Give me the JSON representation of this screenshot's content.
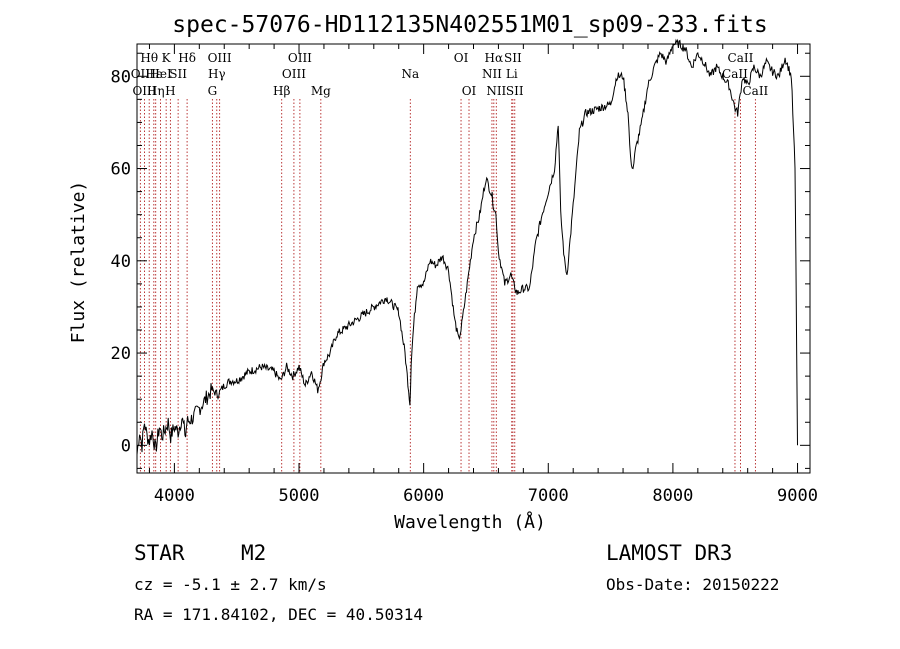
{
  "chart_data": {
    "type": "line",
    "title": "spec-57076-HD112135N402551M01_sp09-233.fits",
    "xlabel": "Wavelength (Å)",
    "ylabel": "Flux (relative)",
    "xlim": [
      3700,
      9100
    ],
    "ylim": [
      -6,
      87
    ],
    "xticks": [
      4000,
      5000,
      6000,
      7000,
      8000,
      9000
    ],
    "yticks": [
      0,
      20,
      40,
      60,
      80
    ],
    "grid": false,
    "series": [
      {
        "name": "spectrum",
        "color": "#000000",
        "x": [
          3700,
          3720,
          3740,
          3760,
          3780,
          3800,
          3820,
          3850,
          3880,
          3900,
          3920,
          3950,
          3970,
          4000,
          4030,
          4060,
          4090,
          4100,
          4150,
          4200,
          4250,
          4300,
          4350,
          4400,
          4450,
          4500,
          4600,
          4700,
          4800,
          4850,
          4870,
          4900,
          4950,
          5000,
          5050,
          5100,
          5150,
          5170,
          5200,
          5250,
          5300,
          5400,
          5500,
          5600,
          5700,
          5800,
          5850,
          5880,
          5890,
          5900,
          5920,
          5950,
          6000,
          6050,
          6100,
          6150,
          6200,
          6250,
          6280,
          6300,
          6350,
          6400,
          6450,
          6500,
          6550,
          6560,
          6580,
          6600,
          6650,
          6700,
          6720,
          6750,
          6800,
          6850,
          6900,
          6950,
          7000,
          7050,
          7080,
          7100,
          7130,
          7150,
          7200,
          7250,
          7300,
          7400,
          7500,
          7550,
          7600,
          7640,
          7660,
          7680,
          7700,
          7750,
          7800,
          7850,
          7900,
          7950,
          8000,
          8050,
          8100,
          8150,
          8200,
          8250,
          8300,
          8350,
          8400,
          8450,
          8500,
          8520,
          8540,
          8560,
          8600,
          8650,
          8700,
          8750,
          8800,
          8850,
          8900,
          8950,
          8980,
          9000
        ],
        "y": [
          -2,
          3,
          0,
          5,
          2,
          1,
          3,
          -1,
          4,
          2,
          3,
          5,
          2,
          4,
          3,
          6,
          2,
          5,
          6,
          8,
          10,
          12,
          11,
          13,
          14,
          14,
          16,
          17,
          16,
          14,
          15,
          17,
          15,
          17,
          13,
          16,
          12,
          14,
          18,
          20,
          24,
          26,
          28,
          30,
          32,
          29,
          20,
          12,
          9,
          18,
          26,
          35,
          35,
          40,
          39,
          41,
          38,
          27,
          23,
          25,
          35,
          45,
          50,
          58,
          54,
          52,
          50,
          42,
          35,
          37,
          35,
          33,
          34,
          34,
          44,
          50,
          55,
          60,
          70,
          50,
          40,
          37,
          52,
          68,
          72,
          73,
          74,
          80,
          80,
          72,
          62,
          60,
          64,
          70,
          78,
          82,
          85,
          83,
          87,
          87,
          86,
          82,
          85,
          83,
          80,
          82,
          80,
          78,
          73,
          72,
          76,
          80,
          78,
          82,
          80,
          83,
          81,
          80,
          84,
          80,
          60,
          0
        ]
      }
    ],
    "line_markers": [
      {
        "label": "Hθ",
        "x": 3798,
        "row": 1
      },
      {
        "label": "OII",
        "x": 3727,
        "row": 2
      },
      {
        "label": "OIII",
        "x": 3760,
        "row": 3
      },
      {
        "label": "Hε",
        "x": 3835,
        "row": 2
      },
      {
        "label": "K",
        "x": 3934,
        "row": 1
      },
      {
        "label": "HeI",
        "x": 3889,
        "row": 2
      },
      {
        "label": "Hη",
        "x": 3850,
        "row": 3
      },
      {
        "label": "SII",
        "x": 4030,
        "row": 2
      },
      {
        "label": "H",
        "x": 3968,
        "row": 3
      },
      {
        "label": "Hδ",
        "x": 4102,
        "row": 1
      },
      {
        "label": "OIII",
        "x": 4363,
        "row": 1
      },
      {
        "label": "Hγ",
        "x": 4340,
        "row": 2
      },
      {
        "label": "G",
        "x": 4305,
        "row": 3
      },
      {
        "label": "Hβ",
        "x": 4861,
        "row": 3
      },
      {
        "label": "OIII",
        "x": 4959,
        "row": 2
      },
      {
        "label": "OIII",
        "x": 5007,
        "row": 1
      },
      {
        "label": "Mg",
        "x": 5175,
        "row": 3
      },
      {
        "label": "Na",
        "x": 5893,
        "row": 2
      },
      {
        "label": "OI",
        "x": 6300,
        "row": 1
      },
      {
        "label": "OI",
        "x": 6364,
        "row": 3
      },
      {
        "label": "Hα",
        "x": 6563,
        "row": 1
      },
      {
        "label": "NII",
        "x": 6548,
        "row": 2
      },
      {
        "label": "NII",
        "x": 6583,
        "row": 3
      },
      {
        "label": "SII",
        "x": 6716,
        "row": 1
      },
      {
        "label": "Li",
        "x": 6707,
        "row": 2
      },
      {
        "label": "SII",
        "x": 6731,
        "row": 3
      },
      {
        "label": "CaII",
        "x": 8542,
        "row": 1
      },
      {
        "label": "CaII",
        "x": 8498,
        "row": 2
      },
      {
        "label": "CaII",
        "x": 8662,
        "row": 3
      }
    ]
  },
  "info": {
    "object_class": "STAR",
    "subclass": "M2",
    "survey": "LAMOST DR3",
    "cz": "cz = -5.1 ± 2.7 km/s",
    "obs_date": "Obs-Date: 20150222",
    "coords": "RA = 171.84102, DEC =  40.50314"
  }
}
